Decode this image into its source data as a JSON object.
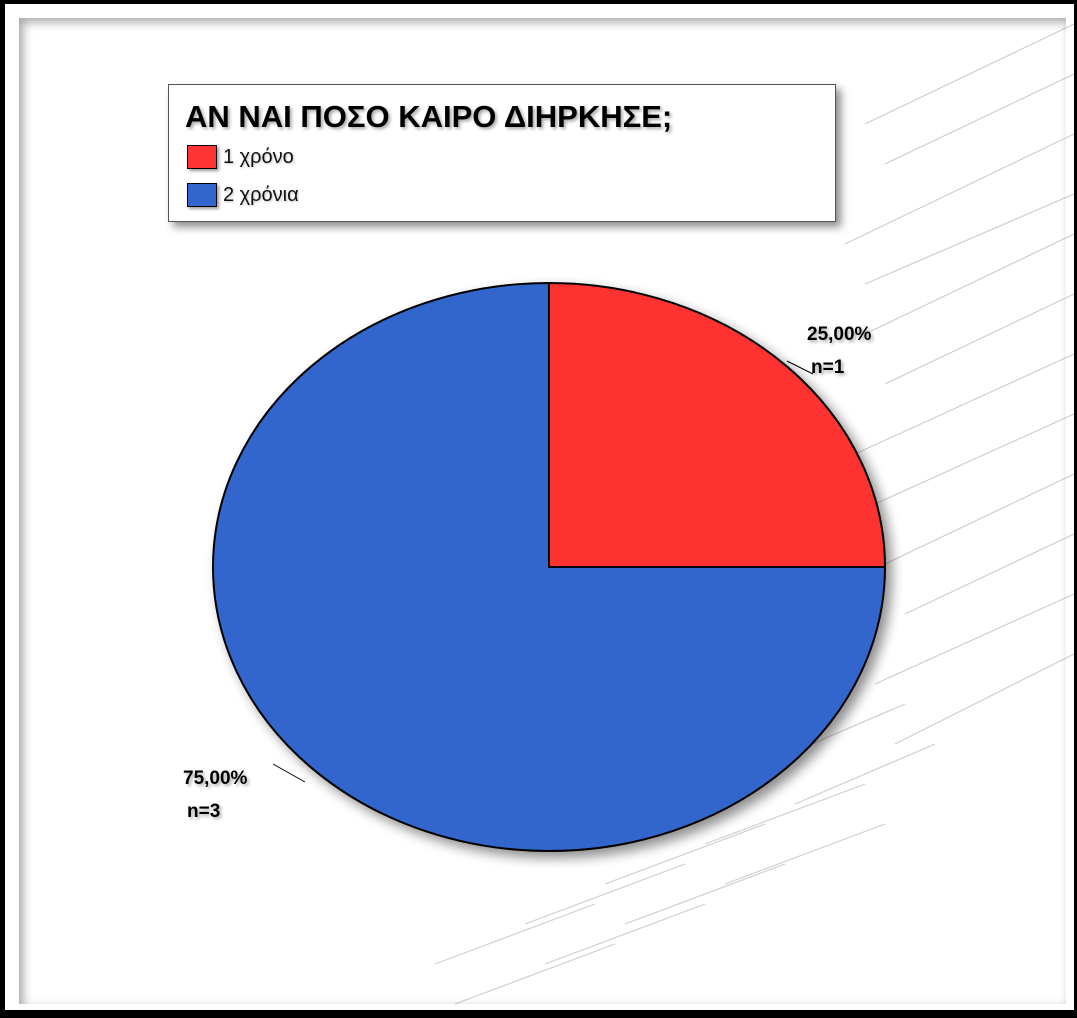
{
  "chart_data": {
    "type": "pie",
    "title": "ΑΝ ΝΑΙ ΠΟΣΟ ΚΑΙΡΟ ΔΙΗΡΚΗΣΕ;",
    "legend_position": "top-left",
    "slices": [
      {
        "label": "1 χρόνο",
        "value": 1,
        "percent": 25.0,
        "percent_label": "25,00%",
        "count_label": "n=1",
        "color": "#ff3333"
      },
      {
        "label": "2 χρόνια",
        "value": 3,
        "percent": 75.0,
        "percent_label": "75,00%",
        "count_label": "n=3",
        "color": "#3366cc"
      }
    ]
  }
}
